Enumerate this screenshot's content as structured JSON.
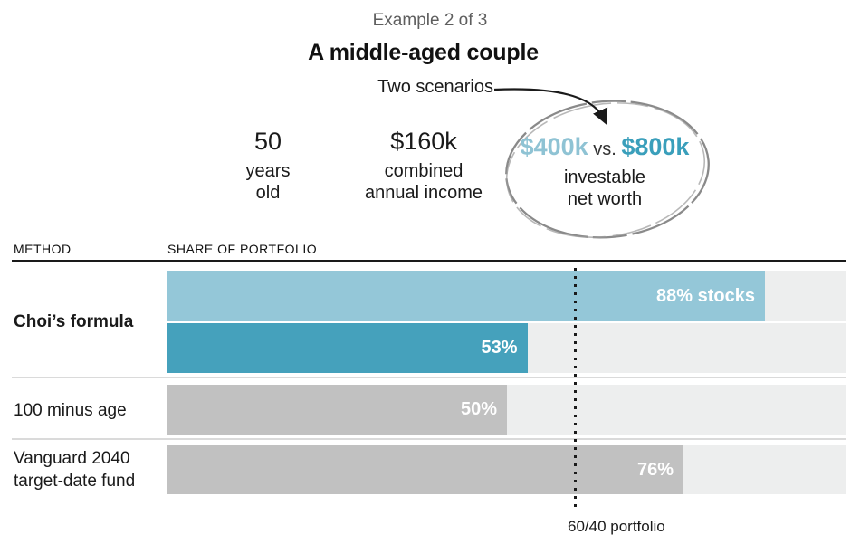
{
  "header": {
    "kicker": "Example 2 of 3",
    "title": "A middle-aged couple",
    "annotation": "Two scenarios"
  },
  "profile": {
    "age": {
      "value": "50",
      "lines": [
        "years",
        "old"
      ]
    },
    "income": {
      "value": "$160k",
      "lines": [
        "combined",
        "annual income"
      ]
    },
    "net_worth": {
      "low": "$400k",
      "vs": "vs.",
      "high": "$800k",
      "lines": [
        "investable",
        "net worth"
      ]
    }
  },
  "chart_data": {
    "type": "bar",
    "orientation": "horizontal",
    "column_headers": {
      "method": "METHOD",
      "share": "SHARE OF PORTFOLIO"
    },
    "xlim": [
      0,
      100
    ],
    "unit": "percent of portfolio in stocks",
    "grid": false,
    "reference_line": {
      "value": 60,
      "label": "60/40 portfolio",
      "style": "dotted"
    },
    "rows": [
      {
        "method": "Choi’s formula",
        "emphasis": true,
        "bars": [
          {
            "scenario": "$400k",
            "value": 88,
            "label": "88% stocks",
            "color": "#94c7d8"
          },
          {
            "scenario": "$800k",
            "value": 53,
            "label": "53%",
            "color": "#45a1bc"
          }
        ]
      },
      {
        "method": "100 minus age",
        "emphasis": false,
        "bars": [
          {
            "value": 50,
            "label": "50%",
            "color": "#c1c1c1"
          }
        ]
      },
      {
        "method": "Vanguard 2040 target-date fund",
        "emphasis": false,
        "bars": [
          {
            "value": 76,
            "label": "76%",
            "color": "#c1c1c1"
          }
        ]
      }
    ]
  },
  "colors": {
    "accent_light": "#94c7d8",
    "accent_dark": "#45a1bc",
    "bar_gray": "#c1c1c1",
    "track": "#edeeee",
    "rule": "#1a1a1a",
    "separator": "#dadada",
    "kicker_text": "#5e5e5e",
    "annotation_gray": "#8a8a8a"
  },
  "icons": {
    "scenarios_arrow": "curved-arrow",
    "net_worth_circle": "hand-drawn-ellipse"
  }
}
